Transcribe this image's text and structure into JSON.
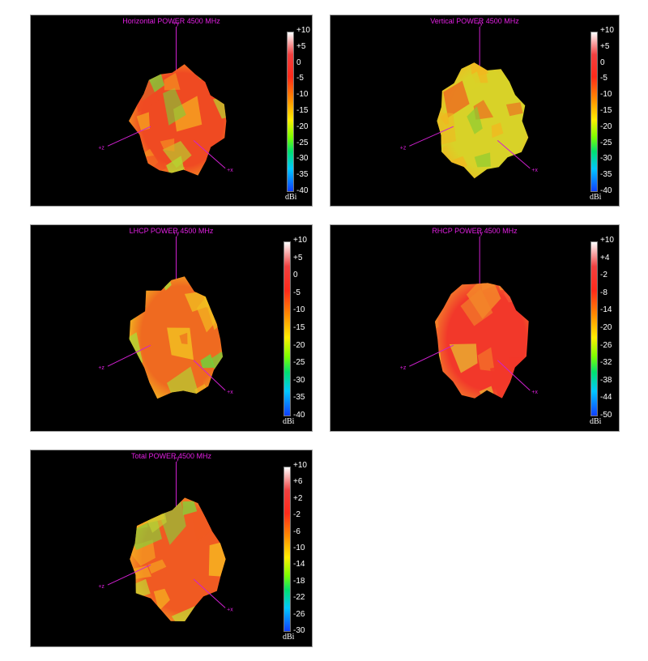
{
  "panels": [
    {
      "title": "Horizontal POWER 4500  MHz",
      "ticks": [
        "+10",
        "+5",
        "0",
        "-5",
        "-10",
        "-15",
        "-20",
        "-25",
        "-30",
        "-35",
        "-40"
      ],
      "unit": "dBi",
      "axes": {
        "y": "+y",
        "z": "+z",
        "x": "+x"
      },
      "colors": {
        "base": "#ef4a22",
        "light": "#f6a020",
        "patch": "#b6d630",
        "spot": "#7ad23a"
      }
    },
    {
      "title": "Vertical POWER 4500  MHz",
      "ticks": [
        "+10",
        "+5",
        "0",
        "-5",
        "-10",
        "-15",
        "-20",
        "-25",
        "-30",
        "-35",
        "-40"
      ],
      "unit": "dBi",
      "axes": {
        "y": "+y",
        "z": "+z",
        "x": "+x"
      },
      "colors": {
        "base": "#d8d228",
        "light": "#f0b820",
        "patch": "#8acc32",
        "spot": "#ee6020"
      }
    },
    {
      "title": "LHCP POWER 4500  MHz",
      "ticks": [
        "+10",
        "+5",
        "0",
        "-5",
        "-10",
        "-15",
        "-20",
        "-25",
        "-30",
        "-35",
        "-40"
      ],
      "unit": "dBi",
      "axes": {
        "y": "+y",
        "z": "+z",
        "x": "+x"
      },
      "colors": {
        "base": "#ef6a20",
        "light": "#f2c020",
        "patch": "#b4d232",
        "spot": "#74d03a"
      }
    },
    {
      "title": "RHCP POWER 4500  MHz",
      "ticks": [
        "+10",
        "+4",
        "-2",
        "-8",
        "-14",
        "-20",
        "-26",
        "-32",
        "-38",
        "-44",
        "-50"
      ],
      "unit": "dBi",
      "axes": {
        "y": "+y",
        "z": "+z",
        "x": "+x"
      },
      "colors": {
        "base": "#f2382a",
        "light": "#f3862a",
        "patch": "#e8b830",
        "spot": "#f45a3a"
      }
    },
    {
      "title": "Total POWER 4500  MHz",
      "ticks": [
        "+10",
        "+6",
        "+2",
        "-2",
        "-6",
        "-10",
        "-14",
        "-18",
        "-22",
        "-26",
        "-30"
      ],
      "unit": "dBi",
      "axes": {
        "y": "+y",
        "z": "+z",
        "x": "+x"
      },
      "colors": {
        "base": "#f05a22",
        "light": "#f6b020",
        "patch": "#c4d432",
        "spot": "#86d23a"
      }
    }
  ]
}
